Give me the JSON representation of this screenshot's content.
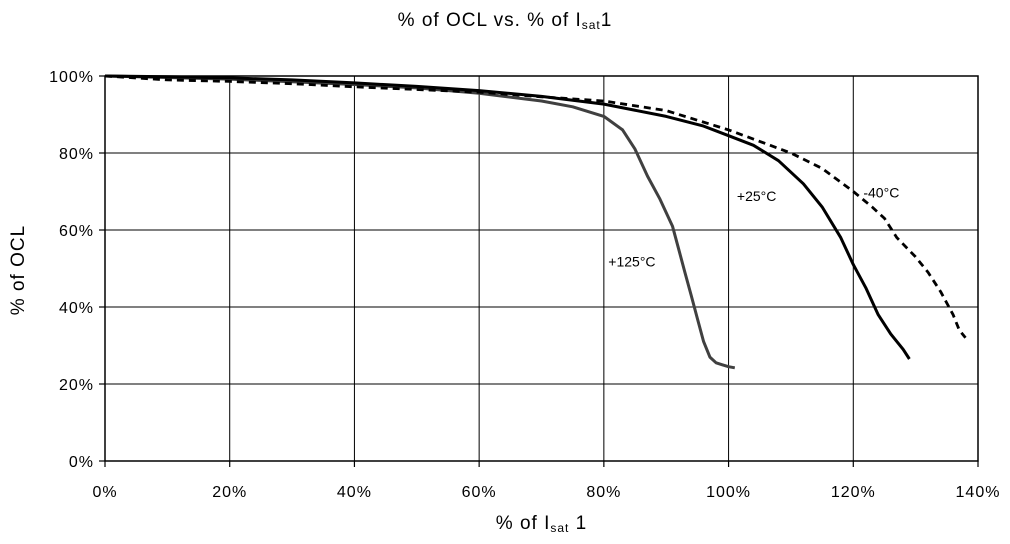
{
  "chart_data": {
    "type": "line",
    "title": {
      "pre": "% of OCL vs. % of I",
      "sub": "sat",
      "post": "1"
    },
    "xlabel": {
      "pre": "% of I",
      "sub": "sat",
      "post": " 1"
    },
    "ylabel": "% of OCL",
    "xlim": [
      0,
      140
    ],
    "ylim": [
      0,
      100
    ],
    "x_ticks": [
      0,
      20,
      40,
      60,
      80,
      100,
      120,
      140
    ],
    "y_ticks": [
      0,
      20,
      40,
      60,
      80,
      100
    ],
    "x_tick_labels": [
      "0%",
      "20%",
      "40%",
      "60%",
      "80%",
      "100%",
      "120%",
      "140%"
    ],
    "y_tick_labels": [
      "0%",
      "20%",
      "40%",
      "60%",
      "80%",
      "100%"
    ],
    "grid": true,
    "series": [
      {
        "name": "+125°C",
        "color": "#404040",
        "line_style": "solid",
        "points": [
          [
            0,
            100
          ],
          [
            10,
            99.6
          ],
          [
            20,
            99.2
          ],
          [
            30,
            98.5
          ],
          [
            40,
            97.8
          ],
          [
            50,
            96.9
          ],
          [
            60,
            95.5
          ],
          [
            70,
            93.5
          ],
          [
            75,
            92
          ],
          [
            80,
            89.5
          ],
          [
            83,
            86
          ],
          [
            85,
            81
          ],
          [
            87,
            74
          ],
          [
            89,
            68
          ],
          [
            91,
            61
          ],
          [
            92,
            55
          ],
          [
            93,
            49
          ],
          [
            94,
            43
          ],
          [
            95,
            37
          ],
          [
            96,
            31
          ],
          [
            97,
            27
          ],
          [
            98,
            25.5
          ],
          [
            99,
            25
          ],
          [
            100,
            24.5
          ],
          [
            101,
            24.2
          ]
        ]
      },
      {
        "name": "+25°C",
        "color": "#000000",
        "line_style": "solid",
        "points": [
          [
            0,
            100
          ],
          [
            10,
            99.8
          ],
          [
            20,
            99.5
          ],
          [
            30,
            99
          ],
          [
            40,
            98.2
          ],
          [
            50,
            97.3
          ],
          [
            60,
            96.2
          ],
          [
            70,
            94.7
          ],
          [
            80,
            92.7
          ],
          [
            90,
            89.5
          ],
          [
            96,
            87
          ],
          [
            100,
            84.5
          ],
          [
            104,
            82
          ],
          [
            108,
            78
          ],
          [
            112,
            72
          ],
          [
            115,
            66
          ],
          [
            118,
            58
          ],
          [
            120,
            51
          ],
          [
            122,
            45
          ],
          [
            124,
            38
          ],
          [
            126,
            33
          ],
          [
            128,
            29
          ],
          [
            129,
            26.5
          ]
        ]
      },
      {
        "name": "-40°C",
        "color": "#000000",
        "line_style": "dashed",
        "points": [
          [
            0,
            100
          ],
          [
            10,
            99
          ],
          [
            20,
            98.6
          ],
          [
            30,
            98
          ],
          [
            40,
            97.2
          ],
          [
            50,
            96.5
          ],
          [
            60,
            95.8
          ],
          [
            70,
            94.6
          ],
          [
            80,
            93.5
          ],
          [
            90,
            91
          ],
          [
            100,
            86
          ],
          [
            110,
            80
          ],
          [
            115,
            76
          ],
          [
            120,
            70
          ],
          [
            123,
            66
          ],
          [
            125,
            63
          ],
          [
            127,
            58
          ],
          [
            130,
            53
          ],
          [
            132,
            49
          ],
          [
            134,
            44
          ],
          [
            136,
            38
          ],
          [
            137,
            34
          ],
          [
            138,
            32
          ]
        ]
      }
    ],
    "annotations": [
      {
        "text": "+125°C",
        "x": 84.5,
        "y": 50.5,
        "series": "+125°C"
      },
      {
        "text": "+25°C",
        "x": 104.5,
        "y": 67.5,
        "series": "+25°C"
      },
      {
        "text": "-40°C",
        "x": 124.5,
        "y": 68.5,
        "series": "-40°C"
      }
    ]
  }
}
